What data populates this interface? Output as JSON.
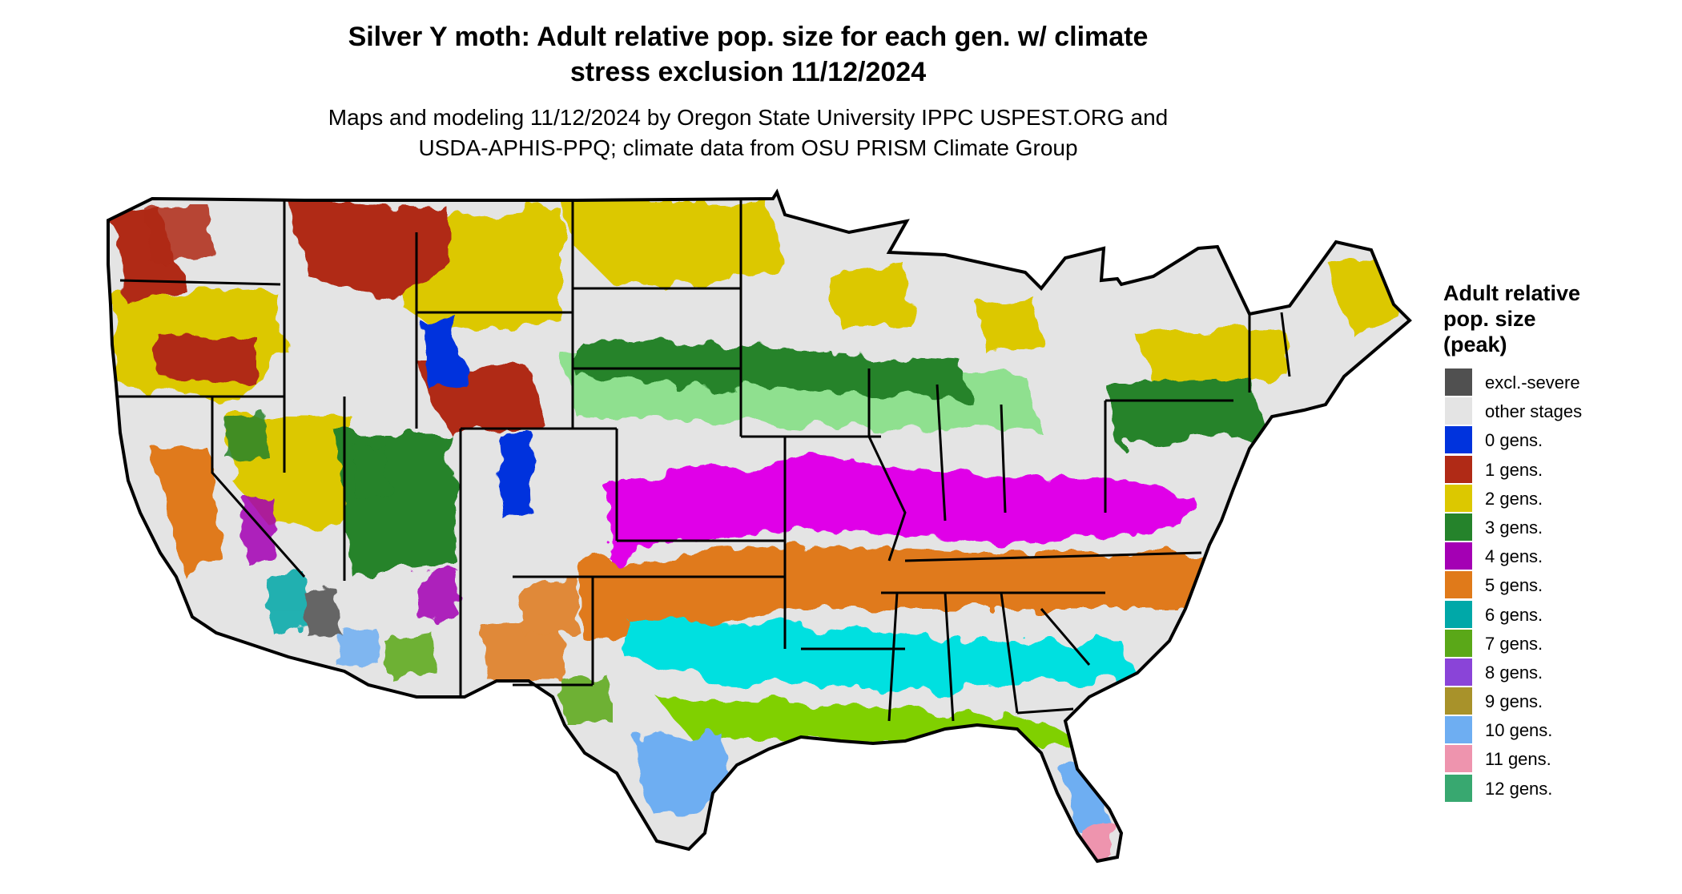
{
  "title": {
    "line1": "Silver Y moth: Adult relative pop. size for each gen. w/ climate",
    "line2": "stress exclusion 11/12/2024"
  },
  "subtitle": {
    "line1": "Maps and modeling 11/12/2024 by Oregon State University IPPC USPEST.ORG and",
    "line2": "USDA-APHIS-PPQ; climate data from OSU PRISM Climate Group"
  },
  "legend": {
    "title_line1": "Adult relative",
    "title_line2": "pop. size",
    "title_line3": "(peak)",
    "items": [
      {
        "label": "excl.-severe",
        "color": "#505050"
      },
      {
        "label": "other stages",
        "color": "#e4e4e4"
      },
      {
        "label": "0 gens.",
        "color": "#0033dd"
      },
      {
        "label": "1 gens.",
        "color": "#b02a16"
      },
      {
        "label": "2 gens.",
        "color": "#dcc800"
      },
      {
        "label": "3 gens.",
        "color": "#25832b"
      },
      {
        "label": "4 gens.",
        "color": "#a400b4"
      },
      {
        "label": "5 gens.",
        "color": "#e07a1a"
      },
      {
        "label": "6 gens.",
        "color": "#00a8a8"
      },
      {
        "label": "7 gens.",
        "color": "#5aa818"
      },
      {
        "label": "8 gens.",
        "color": "#8a44d8"
      },
      {
        "label": "9 gens.",
        "color": "#a8922a"
      },
      {
        "label": "10 gens.",
        "color": "#6eaef2"
      },
      {
        "label": "11 gens.",
        "color": "#ee94ae"
      },
      {
        "label": "12 gens.",
        "color": "#38a870"
      }
    ]
  },
  "map_colors": {
    "base": "#e4e4e4",
    "outline": "#000000",
    "band_pale_green": "#8fe08f",
    "band_magenta": "#e000e8",
    "band_cyan": "#00e0e0",
    "band_lime": "#80d000"
  }
}
